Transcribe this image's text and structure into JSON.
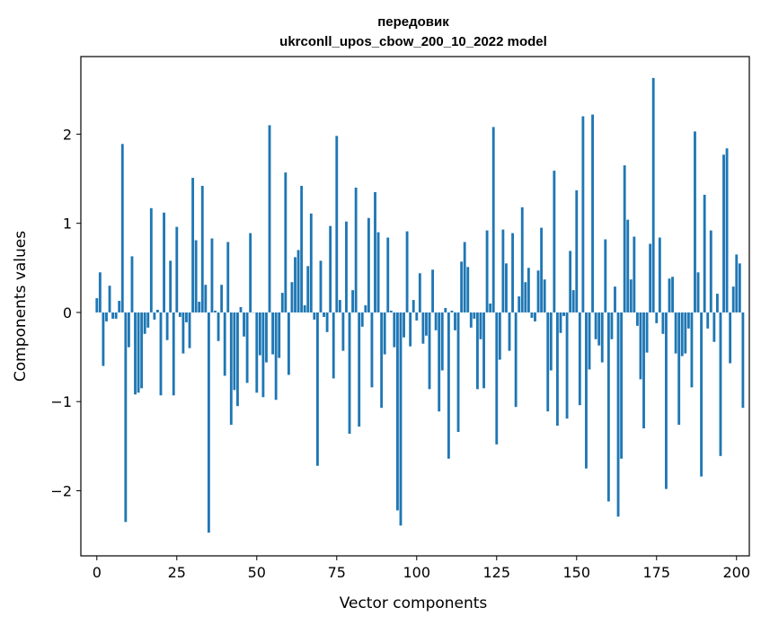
{
  "chart_data": {
    "type": "bar",
    "title": "передовик",
    "subtitle": "ukrconll_upos_cbow_200_10_2022 model",
    "xlabel": "Vector components",
    "ylabel": "Components values",
    "xlim": [
      -5,
      204
    ],
    "ylim": [
      -2.73,
      2.87
    ],
    "xticks": [
      0,
      25,
      50,
      75,
      100,
      125,
      150,
      175,
      200
    ],
    "yticks": [
      -2,
      -1,
      0,
      1,
      2
    ],
    "ytick_labels": [
      "−2",
      "−1",
      "0",
      "1",
      "2"
    ],
    "bar_color": "#1f77b4",
    "grid": false,
    "values": [
      0.16,
      0.45,
      -0.6,
      -0.1,
      0.3,
      -0.07,
      -0.07,
      0.13,
      1.89,
      -2.35,
      -0.39,
      0.63,
      -0.92,
      -0.9,
      -0.85,
      -0.24,
      -0.17,
      1.17,
      -0.08,
      0.03,
      -0.93,
      1.12,
      -0.31,
      0.58,
      -0.93,
      0.96,
      -0.05,
      -0.46,
      -0.11,
      -0.4,
      1.51,
      0.81,
      0.12,
      1.42,
      0.31,
      -2.47,
      0.83,
      0.02,
      -0.32,
      0.31,
      -0.71,
      0.79,
      -1.26,
      -0.87,
      -1.05,
      0.06,
      -0.27,
      -0.79,
      0.89,
      0.0,
      -0.9,
      -0.48,
      -0.95,
      -0.56,
      2.1,
      -0.47,
      -0.98,
      -0.51,
      0.22,
      1.57,
      -0.7,
      0.34,
      0.62,
      0.7,
      1.42,
      0.08,
      0.52,
      1.11,
      -0.08,
      -1.72,
      0.58,
      -0.05,
      -0.22,
      0.97,
      -0.74,
      1.98,
      0.14,
      -0.43,
      1.02,
      -1.36,
      0.25,
      1.4,
      -1.28,
      -0.16,
      0.08,
      1.06,
      -0.84,
      1.35,
      0.9,
      -1.07,
      -0.47,
      0.84,
      0.02,
      -0.39,
      -2.22,
      -2.39,
      -0.28,
      0.91,
      -0.38,
      0.14,
      -0.09,
      0.44,
      -0.35,
      -0.26,
      -0.86,
      0.48,
      -0.2,
      -1.11,
      -0.65,
      0.05,
      -1.64,
      0.02,
      -0.2,
      -1.34,
      0.57,
      0.79,
      0.51,
      -0.17,
      -0.07,
      -0.86,
      -0.3,
      -0.85,
      0.92,
      0.1,
      2.08,
      -1.48,
      -0.53,
      0.93,
      0.55,
      -0.43,
      0.89,
      -1.06,
      0.18,
      1.18,
      0.34,
      0.5,
      -0.06,
      -0.1,
      0.47,
      0.95,
      0.37,
      -1.11,
      -0.65,
      1.59,
      -1.27,
      -0.23,
      -0.04,
      -1.19,
      0.69,
      0.25,
      1.37,
      -1.04,
      2.2,
      -1.75,
      -0.64,
      2.22,
      -0.3,
      -0.37,
      -0.56,
      0.82,
      -2.12,
      -0.3,
      0.29,
      -2.29,
      -1.64,
      1.65,
      1.04,
      0.37,
      0.85,
      -0.15,
      -0.75,
      -1.3,
      -0.45,
      0.77,
      2.63,
      -0.12,
      0.84,
      -0.24,
      -1.98,
      0.38,
      0.4,
      -0.46,
      -1.26,
      -0.49,
      -0.46,
      -0.18,
      -0.84,
      2.03,
      0.45,
      -1.84,
      1.32,
      -0.18,
      0.92,
      -0.33,
      0.21,
      -1.61,
      1.77,
      1.84,
      -0.57,
      0.29,
      0.65,
      0.55,
      -1.07
    ]
  }
}
